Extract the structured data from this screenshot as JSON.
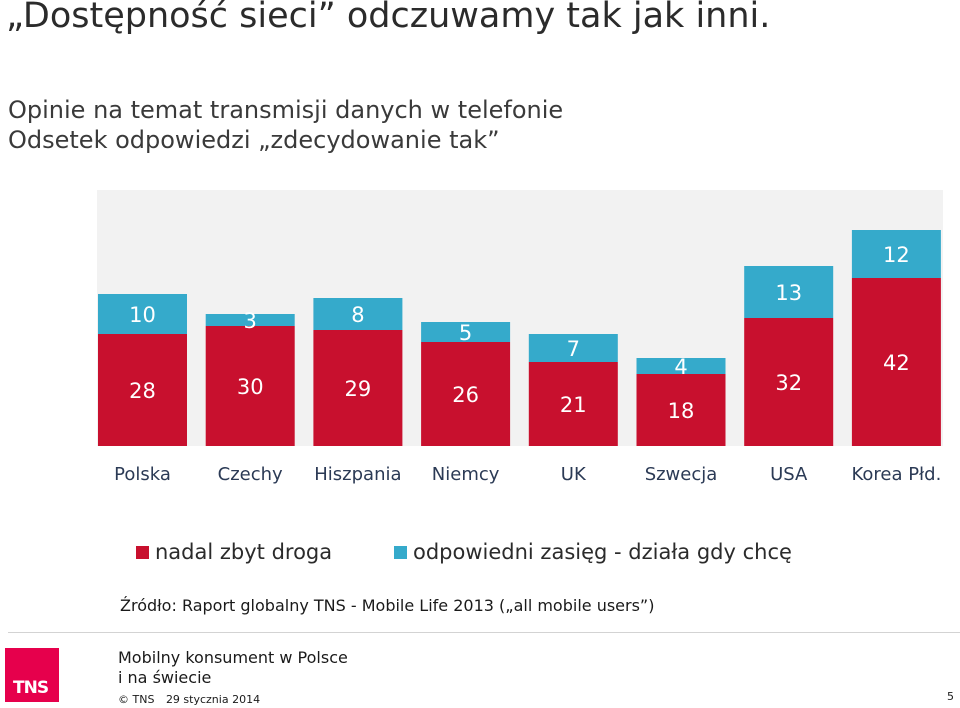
{
  "headline": "„Dostępność sieci” odczuwamy tak jak inni.",
  "subtitle_line1": "Opinie na temat transmisji danych w telefonie",
  "subtitle_line2": "Odsetek odpowiedzi „zdecydowanie tak”",
  "colors": {
    "red": "#c8102e",
    "teal": "#35aacb",
    "bg": "#f2f2f2",
    "logo": "#e6004c"
  },
  "chart_data": {
    "type": "bar",
    "stacked": true,
    "categories": [
      "Polska",
      "Czechy",
      "Hiszpania",
      "Niemcy",
      "UK",
      "Szwecja",
      "USA",
      "Korea Płd."
    ],
    "series": [
      {
        "name": "nadal zbyt droga",
        "color": "#c8102e",
        "values": [
          28,
          30,
          29,
          26,
          21,
          18,
          32,
          42
        ]
      },
      {
        "name": "odpowiedni zasięg - działa gdy chcę",
        "color": "#35aacb",
        "values": [
          10,
          3,
          8,
          5,
          7,
          4,
          13,
          12
        ]
      }
    ],
    "ylim": [
      0,
      54
    ],
    "grid": false,
    "legend_position": "bottom"
  },
  "legend": {
    "item1": "nadal zbyt droga",
    "item2": "odpowiedni zasięg - działa gdy chcę"
  },
  "source": "Źródło: Raport globalny TNS - Mobile Life 2013 („all mobile users”)",
  "footer": {
    "title_line1": "Mobilny konsument w Polsce",
    "title_line2": "i na świecie",
    "copyright": "© TNS",
    "date": "29 stycznia 2014",
    "page": "5",
    "logo_text": "TNS"
  }
}
